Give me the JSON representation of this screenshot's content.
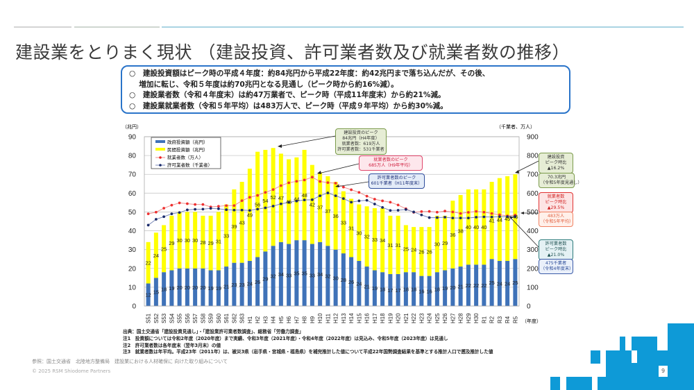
{
  "title": "建設業をとりまく現状 （建設投資、許可業者数及び就業者数の推移）",
  "summary": [
    "○　建設投資額はピーク時の平成４年度：約84兆円から平成22年度：約42兆円まで落ち込んだが、その後、",
    "　 増加に転じ、令和５年度は約70兆円となる見通し（ピーク時から約16%減）。",
    "○　建設業者数（令和４年度末）は約47万業者で、ピーク時（平成11年度末）から約21%減。",
    "○　建設業就業者数（令和５年平均）は483万人で、ピーク時（平成９年平均）から約30%減。"
  ],
  "chart_data": {
    "type": "bar",
    "left_unit": "（兆円）",
    "right_unit": "（千業者、万人）",
    "xlabel": "（年度）",
    "ylim_left": [
      0,
      90
    ],
    "ylim_right": [
      0,
      900
    ],
    "left_ticks": [
      "0",
      "10",
      "20",
      "30",
      "40",
      "50",
      "60",
      "70",
      "80",
      "90"
    ],
    "right_ticks": [
      "0",
      "100",
      "200",
      "300",
      "400",
      "500",
      "600",
      "700",
      "800",
      "900"
    ],
    "grid": true,
    "legend_position": "top-left",
    "categories": [
      "S51",
      "S52",
      "S53",
      "S54",
      "S55",
      "S56",
      "S57",
      "S58",
      "S59",
      "S60",
      "S61",
      "S62",
      "S63",
      "H1",
      "H2",
      "H3",
      "H4",
      "H5",
      "H6",
      "H7",
      "H8",
      "H9",
      "H10",
      "H11",
      "H12",
      "H13",
      "H14",
      "H15",
      "H16",
      "H17",
      "H18",
      "H19",
      "H20",
      "H21",
      "H22",
      "H23",
      "H24",
      "H25",
      "H26",
      "H27",
      "H28",
      "H29",
      "H30",
      "R1",
      "R2",
      "R3",
      "R4",
      "R5"
    ],
    "series": [
      {
        "name": "政府投資額（兆円）",
        "type": "stacked-bar",
        "axis": "left",
        "color": "#3f72b8",
        "values": [
          12,
          15,
          18,
          19,
          20,
          20,
          20,
          20,
          19,
          19,
          21,
          23,
          23,
          24,
          26,
          29,
          32,
          34,
          33,
          35,
          35,
          33,
          34,
          32,
          30,
          28,
          26,
          24,
          21,
          19,
          18,
          17,
          17,
          18,
          18,
          16,
          16,
          18,
          19,
          20,
          21,
          22,
          22,
          22,
          25,
          24,
          24,
          25
        ]
      },
      {
        "name": "民間投資額（兆円）",
        "type": "stacked-bar",
        "axis": "left",
        "color": "#ffff00",
        "values": [
          22,
          24,
          25,
          29,
          30,
          30,
          30,
          28,
          29,
          31,
          33,
          39,
          43,
          49,
          56,
          54,
          52,
          47,
          45,
          44,
          48,
          42,
          37,
          37,
          36,
          33,
          31,
          30,
          32,
          33,
          34,
          31,
          31,
          25,
          24,
          26,
          26,
          30,
          29,
          36,
          38,
          40,
          40,
          40,
          41,
          44,
          45,
          45
        ]
      },
      {
        "name": "就業者数（万人）",
        "type": "line",
        "axis": "right",
        "color": "#ee3030",
        "values": [
          490,
          499,
          520,
          536,
          548,
          544,
          540,
          540,
          527,
          530,
          534,
          534,
          560,
          578,
          588,
          604,
          619,
          640,
          655,
          663,
          670,
          685,
          662,
          656,
          653,
          632,
          618,
          604,
          584,
          568,
          559,
          552,
          537,
          517,
          498,
          502,
          503,
          499,
          505,
          500,
          492,
          498,
          503,
          499,
          492,
          485,
          479,
          483
        ]
      },
      {
        "name": "許可業者数（千業者）",
        "type": "line",
        "axis": "right",
        "color": "#1a2a6a",
        "values": [
          430,
          461,
          475,
          490,
          497,
          511,
          514,
          515,
          519,
          517,
          512,
          510,
          510,
          508,
          515,
          522,
          531,
          543,
          551,
          558,
          564,
          565,
          586,
          601,
          586,
          571,
          552,
          559,
          562,
          542,
          524,
          508,
          509,
          513,
          500,
          484,
          470,
          470,
          472,
          468,
          468,
          468,
          472,
          474,
          473,
          475,
          475,
          475
        ]
      }
    ]
  },
  "annotations": {
    "invest_peak": [
      "建設投資のピーク",
      "84兆円（H4年度）",
      "就業者数：619万人",
      "許可業者数：531千業者"
    ],
    "worker_peak": [
      "就業者数のピーク",
      "685万人（H9年平均）"
    ],
    "permit_peak": [
      "許可業者数のピーク",
      "601千業者（H11年度末）"
    ],
    "invest_ratio": [
      "建設投資",
      "ピーク時比",
      "▲16.2%"
    ],
    "invest_now": [
      "70.3兆円",
      "（令和5年度見通し）"
    ],
    "worker_ratio": [
      "就業者数",
      "ピーク時比",
      "▲29.5%"
    ],
    "worker_now": [
      "483万人",
      "（令和5年平均）"
    ],
    "permit_ratio": [
      "許可業者数",
      "ピーク時比",
      "▲21.0%"
    ],
    "permit_now": [
      "475千業者",
      "（令和4年度末）"
    ]
  },
  "notes": [
    "出典：国土交通省「建設投資見通し」・「建設業許可業者数調査」、総務省「労働力調査」",
    "注1　投資額については令和2年度（2020年度）まで実績、令和3年度（2021年度）・令和4年度（2022年度）は見込み、令和5年度（2023年度）は見通し",
    "注2　許可業者数は各年度末（翌年3月末）の値",
    "注3　就業者数は年平均。平成23年（2011年）は、被災3県（岩手県・宮城県・福島県）を補完推計した値について平成22年国勢調査結果を基準とする推計人口で遡及推計した値"
  ],
  "reference": "参照：国土交通省　北陸地方整備局　建設業における人材確保に 向けた取り組みについて",
  "copyright": "© 2025 RSM Shiodome Partners",
  "page_number": "9",
  "colors": {
    "accent": "#0e9ad7",
    "box_border": "#2a74c9"
  }
}
